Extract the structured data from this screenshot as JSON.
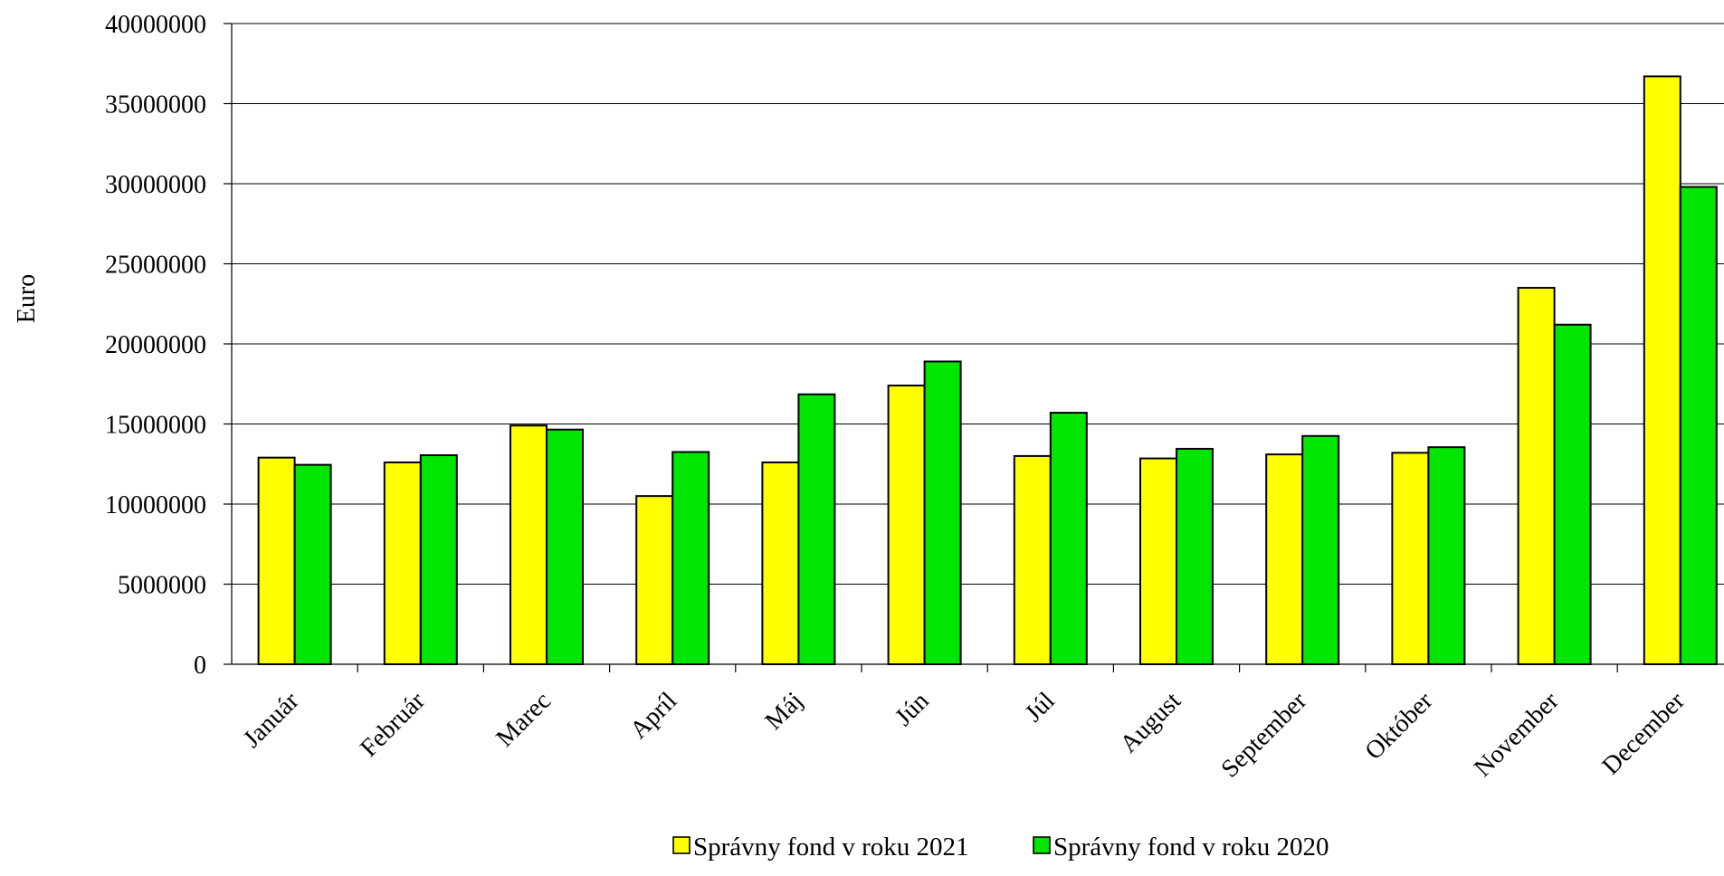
{
  "chart_data": {
    "type": "bar",
    "title": "",
    "xlabel": "",
    "ylabel": "Euro",
    "ylim": [
      0,
      40000000
    ],
    "yticks": [
      0,
      5000000,
      10000000,
      15000000,
      20000000,
      25000000,
      30000000,
      35000000,
      40000000
    ],
    "ytick_labels": [
      "0",
      "5000000",
      "10000000",
      "15000000",
      "20000000",
      "25000000",
      "30000000",
      "35000000",
      "40000000"
    ],
    "grid": true,
    "legend_position": "bottom",
    "categories": [
      "Január",
      "Február",
      "Marec",
      "Apríl",
      "Máj",
      "Jún",
      "Júl",
      "August",
      "September",
      "Október",
      "November",
      "December"
    ],
    "series": [
      {
        "name": "Správny fond v roku 2021",
        "color": "#FFFF00",
        "values": [
          12900000,
          12600000,
          14900000,
          10500000,
          12600000,
          17400000,
          13000000,
          12850000,
          13100000,
          13200000,
          23500000,
          36700000
        ]
      },
      {
        "name": "Správny fond v roku 2020",
        "color": "#00E600",
        "values": [
          12450000,
          13050000,
          14650000,
          13250000,
          16850000,
          18900000,
          15700000,
          13450000,
          14250000,
          13550000,
          21200000,
          29800000
        ]
      }
    ]
  }
}
